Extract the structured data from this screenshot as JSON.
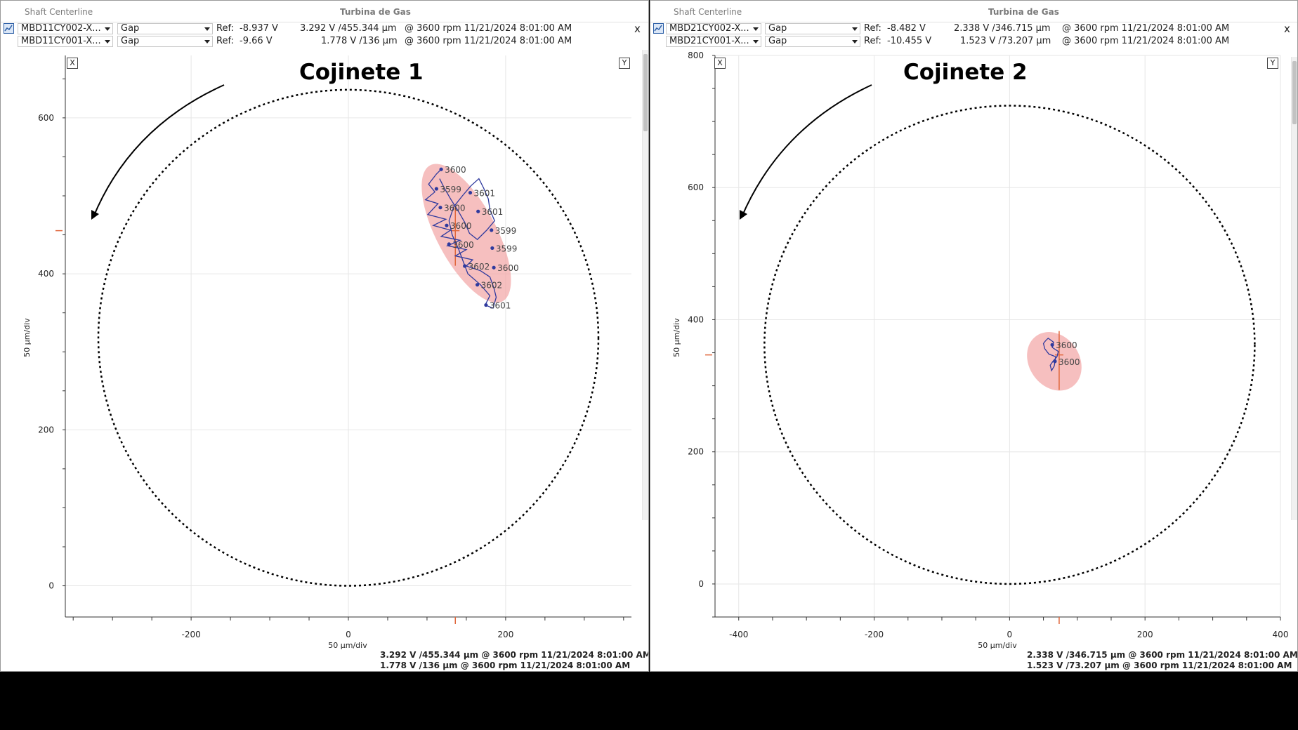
{
  "panels": [
    {
      "window_title": "Shaft Centerline",
      "machine": "Turbina de Gas",
      "channels": [
        {
          "sensor": "MBD11CY002-X...",
          "mode": "Gap",
          "ref_label": "Ref:",
          "ref_value": "-8.937 V",
          "reading": "3.292 V /455.344 µm",
          "at": "@ 3600 rpm 11/21/2024 8:01:00 AM"
        },
        {
          "sensor": "MBD11CY001-X...",
          "mode": "Gap",
          "ref_label": "Ref:",
          "ref_value": "-9.66 V",
          "reading": "1.778 V /136 µm",
          "at": "@ 3600 rpm 11/21/2024 8:01:00 AM"
        }
      ],
      "close_label": "x",
      "x_button": "X",
      "y_button": "Y",
      "plot_title": "Cojinete 1",
      "y_axis_label": "50 µm/div",
      "x_axis_label": "50 µm/div",
      "footer": [
        "3.292 V /455.344 µm @ 3600 rpm 11/21/2024 8:01:00 AM",
        "1.778 V /136 µm @ 3600 rpm 11/21/2024 8:01:00 AM"
      ]
    },
    {
      "window_title": "Shaft Centerline",
      "machine": "Turbina de Gas",
      "channels": [
        {
          "sensor": "MBD21CY002-X...",
          "mode": "Gap",
          "ref_label": "Ref:",
          "ref_value": "-8.482 V",
          "reading": "2.338 V /346.715 µm",
          "at": "@ 3600 rpm 11/21/2024 8:01:00 AM"
        },
        {
          "sensor": "MBD21CY001-X...",
          "mode": "Gap",
          "ref_label": "Ref:",
          "ref_value": "-10.455 V",
          "reading": "1.523 V /73.207 µm",
          "at": "@ 3600 rpm 11/21/2024 8:01:00 AM"
        }
      ],
      "close_label": "x",
      "x_button": "X",
      "y_button": "Y",
      "plot_title": "Cojinete 2",
      "y_axis_label": "50 µm/div",
      "x_axis_label": "50 µm/div",
      "footer": [
        "2.338 V /346.715 µm @ 3600 rpm 11/21/2024 8:01:00 AM",
        "1.523 V /73.207 µm @ 3600 rpm 11/21/2024 8:01:00 AM"
      ]
    }
  ],
  "colors": {
    "orbit": "#2f3a9e",
    "ellipse_fill": "#f2a4a4",
    "marker": "#e0673c",
    "grid": "#e6e6e6",
    "clearance": "#000000",
    "rpm_label": "#444444"
  },
  "chart_data": [
    {
      "type": "scatter",
      "title": "Cojinete 1",
      "xlabel": "50 µm/div",
      "ylabel": "50 µm/div",
      "xlim": [
        -360,
        360
      ],
      "ylim": [
        -40,
        680
      ],
      "x_ticks": [
        -200,
        0,
        200
      ],
      "y_ticks": [
        0,
        200,
        400,
        600
      ],
      "grid": true,
      "clearance_circle": {
        "cx": 0,
        "cy": 318,
        "r": 318
      },
      "ellipse": {
        "cx": 150,
        "cy": 452,
        "rx": 98,
        "ry": 38,
        "angle_deg": 62
      },
      "centerline": {
        "x": 136,
        "y": 455.344
      },
      "orbit_points": [
        [
          118,
          534
        ],
        [
          112,
          528
        ],
        [
          102,
          515
        ],
        [
          110,
          505
        ],
        [
          98,
          495
        ],
        [
          114,
          490
        ],
        [
          101,
          476
        ],
        [
          124,
          470
        ],
        [
          108,
          462
        ],
        [
          130,
          456
        ],
        [
          118,
          448
        ],
        [
          142,
          443
        ],
        [
          126,
          436
        ],
        [
          150,
          431
        ],
        [
          136,
          423
        ],
        [
          158,
          418
        ],
        [
          150,
          410
        ],
        [
          168,
          404
        ],
        [
          180,
          396
        ],
        [
          185,
          382
        ],
        [
          188,
          370
        ],
        [
          184,
          356
        ],
        [
          174,
          360
        ],
        [
          180,
          372
        ],
        [
          168,
          386
        ],
        [
          152,
          400
        ],
        [
          146,
          416
        ],
        [
          140,
          432
        ],
        [
          132,
          450
        ],
        [
          128,
          468
        ],
        [
          134,
          486
        ],
        [
          145,
          500
        ],
        [
          156,
          513
        ],
        [
          166,
          522
        ],
        [
          172,
          510
        ],
        [
          178,
          496
        ],
        [
          180,
          482
        ],
        [
          186,
          468
        ],
        [
          176,
          456
        ],
        [
          164,
          444
        ],
        [
          154,
          452
        ],
        [
          148,
          466
        ],
        [
          140,
          480
        ],
        [
          130,
          496
        ],
        [
          122,
          510
        ],
        [
          116,
          522
        ]
      ],
      "rpm_markers": [
        {
          "x": 118,
          "y": 534,
          "label": "3600"
        },
        {
          "x": 112,
          "y": 509,
          "label": "3599"
        },
        {
          "x": 155,
          "y": 504,
          "label": "3601"
        },
        {
          "x": 165,
          "y": 480,
          "label": "3601"
        },
        {
          "x": 117,
          "y": 485,
          "label": "3600"
        },
        {
          "x": 182,
          "y": 456,
          "label": "3599"
        },
        {
          "x": 125,
          "y": 462,
          "label": "3600"
        },
        {
          "x": 183,
          "y": 433,
          "label": "3599"
        },
        {
          "x": 128,
          "y": 438,
          "label": "3600"
        },
        {
          "x": 148,
          "y": 410,
          "label": "3602"
        },
        {
          "x": 185,
          "y": 408,
          "label": "3600"
        },
        {
          "x": 164,
          "y": 386,
          "label": "3602"
        },
        {
          "x": 175,
          "y": 360,
          "label": "3601"
        }
      ]
    },
    {
      "type": "scatter",
      "title": "Cojinete 2",
      "xlabel": "50 µm/div",
      "ylabel": "50 µm/div",
      "xlim": [
        -435,
        400
      ],
      "ylim": [
        -50,
        800
      ],
      "x_ticks": [
        -400,
        -200,
        0,
        200,
        400
      ],
      "y_ticks": [
        0,
        200,
        400,
        600,
        800
      ],
      "grid": true,
      "clearance_circle": {
        "cx": 0,
        "cy": 362,
        "r": 362
      },
      "ellipse": {
        "cx": 66,
        "cy": 337,
        "rx": 46,
        "ry": 38,
        "angle_deg": 55
      },
      "centerline": {
        "x": 73.207,
        "y": 346.715
      },
      "orbit_points": [
        [
          53,
          368
        ],
        [
          57,
          372
        ],
        [
          65,
          366
        ],
        [
          63,
          358
        ],
        [
          72,
          352
        ],
        [
          70,
          344
        ],
        [
          64,
          337
        ],
        [
          60,
          331
        ],
        [
          62,
          323
        ],
        [
          66,
          330
        ],
        [
          68,
          344
        ],
        [
          58,
          348
        ],
        [
          52,
          356
        ],
        [
          50,
          364
        ],
        [
          53,
          368
        ]
      ],
      "rpm_markers": [
        {
          "x": 63,
          "y": 362,
          "label": "3600"
        },
        {
          "x": 67,
          "y": 337,
          "label": "3600"
        }
      ]
    }
  ]
}
